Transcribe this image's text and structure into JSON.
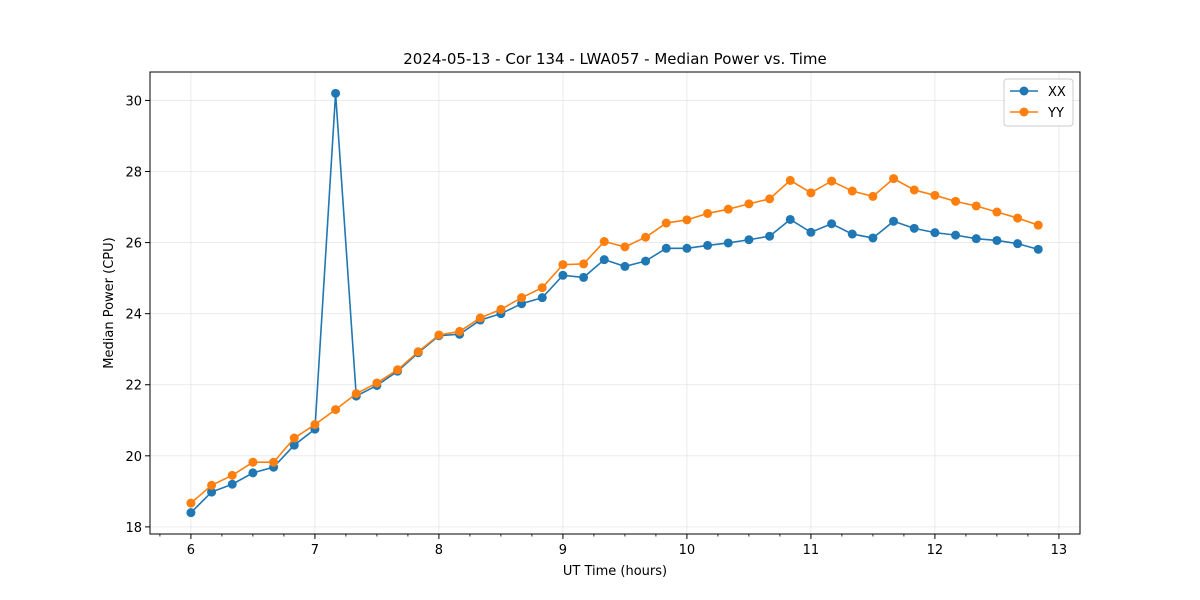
{
  "chart_data": {
    "type": "line",
    "title": "2024-05-13 - Cor 134 - LWA057 - Median Power vs. Time",
    "xlabel": "UT Time (hours)",
    "ylabel": "Median Power (CPU)",
    "xlim": [
      5.67,
      13.17
    ],
    "ylim": [
      17.8,
      30.8
    ],
    "xticks": [
      "6",
      "7",
      "8",
      "9",
      "10",
      "11",
      "12",
      "13"
    ],
    "yticks": [
      "18",
      "20",
      "22",
      "24",
      "26",
      "28",
      "30"
    ],
    "grid": true,
    "legend_position": "top-right",
    "x": [
      6.0,
      6.1667,
      6.3333,
      6.5,
      6.6667,
      6.8333,
      7.0,
      7.1667,
      7.3333,
      7.5,
      7.6667,
      7.8333,
      8.0,
      8.1667,
      8.3333,
      8.5,
      8.6667,
      8.8333,
      9.0,
      9.1667,
      9.3333,
      9.5,
      9.6667,
      9.8333,
      10.0,
      10.1667,
      10.3333,
      10.5,
      10.6667,
      10.8333,
      11.0,
      11.1667,
      11.3333,
      11.5,
      11.6667,
      11.8333,
      12.0,
      12.1667,
      12.3333,
      12.5,
      12.6667,
      12.8333
    ],
    "series": [
      {
        "name": "XX",
        "color": "#1f77b4",
        "values": [
          18.4,
          18.98,
          19.2,
          19.52,
          19.68,
          20.3,
          20.75,
          30.2,
          21.68,
          21.98,
          22.38,
          22.9,
          23.38,
          23.42,
          23.82,
          24.0,
          24.28,
          24.45,
          25.08,
          25.02,
          25.52,
          25.33,
          25.48,
          25.84,
          25.84,
          25.92,
          25.99,
          26.08,
          26.18,
          26.65,
          26.29,
          26.53,
          26.24,
          26.13,
          26.6,
          26.4,
          26.28,
          26.21,
          26.11,
          26.06,
          25.97,
          25.81
        ]
      },
      {
        "name": "YY",
        "color": "#ff7f0e",
        "values": [
          18.67,
          19.17,
          19.45,
          19.82,
          19.82,
          20.5,
          20.88,
          21.3,
          21.75,
          22.05,
          22.42,
          22.93,
          23.4,
          23.5,
          23.88,
          24.12,
          24.45,
          24.73,
          25.38,
          25.4,
          26.03,
          25.88,
          26.15,
          26.55,
          26.64,
          26.82,
          26.94,
          27.09,
          27.23,
          27.75,
          27.4,
          27.73,
          27.45,
          27.3,
          27.8,
          27.48,
          27.33,
          27.16,
          27.03,
          26.86,
          26.69,
          26.49
        ]
      }
    ]
  }
}
